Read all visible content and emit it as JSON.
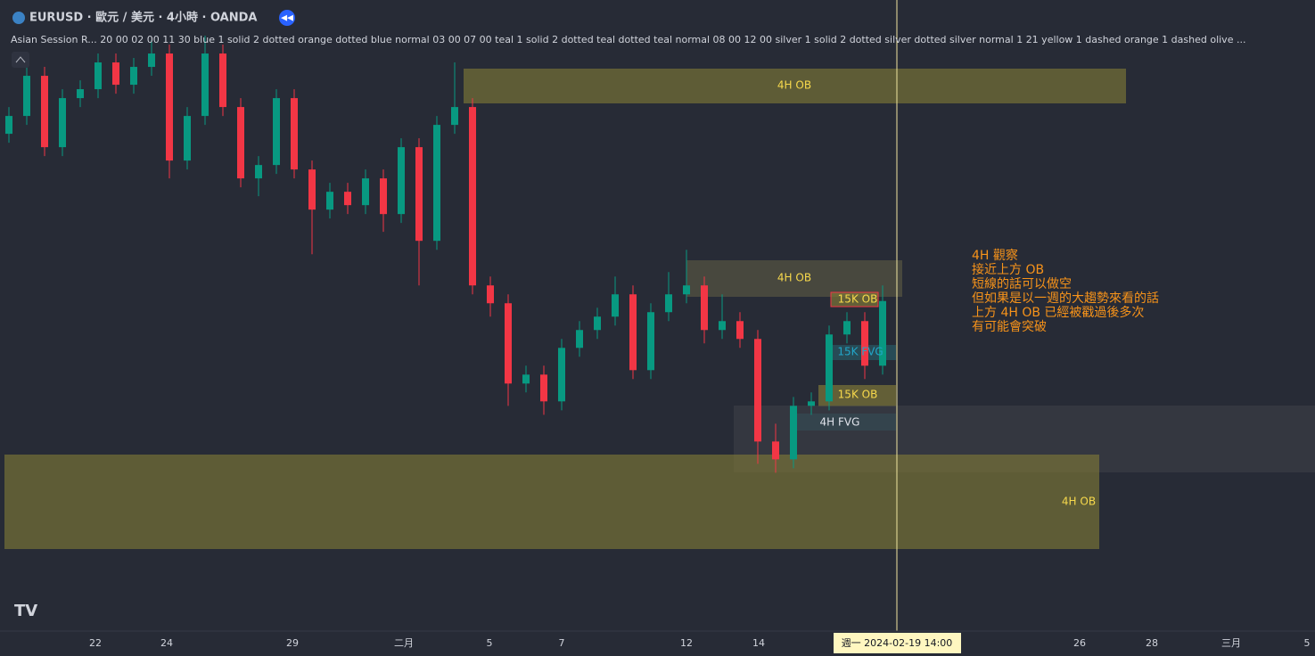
{
  "header": {
    "symbol": "EURUSD · 歐元 / 美元 · 4小時 · OANDA",
    "indicator": "Asian Session R...  20 00 02 00 11 30 blue 1 solid 2 dotted orange dotted blue normal 03 00 07 00 teal 1 solid 2 dotted teal dotted teal normal 08 00 12 00 silver 1 solid 2 dotted silver dotted silver normal 1 21 yellow 1 dashed orange 1 dashed olive ..."
  },
  "chart_data": {
    "type": "candlestick",
    "ylim": [
      1.0667,
      1.095
    ],
    "up_color": "#089981",
    "down_color": "#f23645",
    "open": [
      1.089,
      1.0898,
      1.0916,
      1.0884,
      1.0906,
      1.091,
      1.0922,
      1.0912,
      1.092,
      1.0926,
      1.0878,
      1.0898,
      1.0926,
      1.0902,
      1.087,
      1.0876,
      1.0906,
      1.0874,
      1.0856,
      1.0864,
      1.0858,
      1.087,
      1.0854,
      1.0884,
      1.0842,
      1.0894,
      1.0902,
      1.0822,
      1.0814,
      1.0778,
      1.0782,
      1.077,
      1.0794,
      1.0802,
      1.0808,
      1.0818,
      1.0784,
      1.081,
      1.0818,
      1.0822,
      1.0802,
      1.0806,
      1.0798,
      1.0752,
      1.0744,
      1.0768,
      1.077,
      1.08,
      1.0806,
      1.0786
    ],
    "high": [
      1.0902,
      1.092,
      1.092,
      1.091,
      1.0914,
      1.0926,
      1.0926,
      1.0924,
      1.0932,
      1.093,
      1.0902,
      1.0934,
      1.093,
      1.0906,
      1.088,
      1.091,
      1.091,
      1.0878,
      1.0868,
      1.0868,
      1.0874,
      1.0874,
      1.0888,
      1.0888,
      1.0898,
      1.0922,
      1.0906,
      1.0826,
      1.0818,
      1.0786,
      1.0786,
      1.0798,
      1.0806,
      1.0812,
      1.0826,
      1.0822,
      1.0814,
      1.0828,
      1.0838,
      1.0826,
      1.0818,
      1.081,
      1.0802,
      1.076,
      1.0772,
      1.0774,
      1.0804,
      1.081,
      1.081,
      1.0822
    ],
    "low": [
      1.0886,
      1.0894,
      1.088,
      1.088,
      1.0902,
      1.0906,
      1.0908,
      1.0908,
      1.0916,
      1.087,
      1.0874,
      1.0894,
      1.0898,
      1.0866,
      1.0862,
      1.0872,
      1.087,
      1.0836,
      1.0852,
      1.0854,
      1.0854,
      1.0846,
      1.085,
      1.0822,
      1.0838,
      1.089,
      1.0818,
      1.0808,
      1.0768,
      1.0774,
      1.0764,
      1.0766,
      1.079,
      1.0798,
      1.0804,
      1.078,
      1.078,
      1.0806,
      1.0814,
      1.0796,
      1.0798,
      1.0794,
      1.0742,
      1.0738,
      1.074,
      1.0764,
      1.0766,
      1.0796,
      1.078,
      1.0782
    ],
    "close": [
      1.0898,
      1.0916,
      1.0884,
      1.0906,
      1.091,
      1.0922,
      1.0912,
      1.092,
      1.0926,
      1.0878,
      1.0898,
      1.0926,
      1.0902,
      1.087,
      1.0876,
      1.0906,
      1.0874,
      1.0856,
      1.0864,
      1.0858,
      1.087,
      1.0854,
      1.0884,
      1.0842,
      1.0894,
      1.0902,
      1.0822,
      1.0814,
      1.0778,
      1.0782,
      1.077,
      1.0794,
      1.0802,
      1.0808,
      1.0818,
      1.0784,
      1.081,
      1.0818,
      1.0822,
      1.0802,
      1.0806,
      1.0798,
      1.0752,
      1.0744,
      1.0768,
      1.077,
      1.08,
      1.0806,
      1.0786,
      1.0815
    ]
  },
  "zones": [
    "4H OB",
    "4H OB",
    "15K OB",
    "15K FVG",
    "15K OB",
    "4H FVG",
    "4H OB"
  ],
  "notes": [
    "4H 觀察",
    "接近上方 OB",
    "短線的話可以做空",
    "但如果是以一週的大趨勢來看的話",
    "上方 4H OB 已經被戳過後多次",
    "有可能會突破"
  ],
  "x_axis_labels": [
    "22",
    "24",
    "29",
    "二月",
    "5",
    "7",
    "12",
    "14",
    "26",
    "28",
    "三月",
    "5"
  ],
  "cursor_label": "週一  2024-02-19   14:00"
}
